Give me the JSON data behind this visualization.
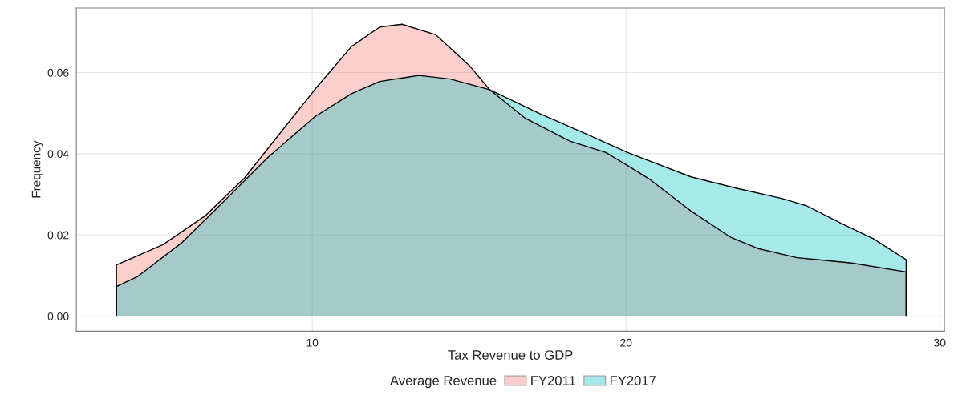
{
  "chart_data": {
    "type": "area",
    "xlabel": "Tax Revenue to GDP",
    "ylabel": "Frequency",
    "legend_title": "Average Revenue",
    "legend": "bottom",
    "grid": true,
    "xlim": [
      2.48,
      30.15
    ],
    "ylim": [
      -0.0037,
      0.0759
    ],
    "xticks": [
      10,
      20,
      30
    ],
    "yticks": [
      {
        "value": 0,
        "label": "0.00"
      },
      0.02,
      0.04,
      0.06
    ],
    "series": [
      {
        "name": "FY2011",
        "color": "#f8766d",
        "x": [
          3.76,
          5.24,
          6.57,
          7.85,
          9.1,
          10.08,
          11.25,
          12.15,
          12.86,
          13.94,
          15.01,
          15.65,
          16.78,
          18.21,
          19.36,
          20.05,
          20.72,
          22.07,
          23.32,
          24.19,
          25.45,
          27.19,
          28.93
        ],
        "values": [
          0.0126,
          0.0176,
          0.0246,
          0.0341,
          0.0463,
          0.0558,
          0.0664,
          0.0712,
          0.0719,
          0.0693,
          0.0617,
          0.0558,
          0.0488,
          0.0431,
          0.0403,
          0.0371,
          0.0339,
          0.0259,
          0.0195,
          0.0167,
          0.0144,
          0.0131,
          0.0109
        ]
      },
      {
        "name": "FY2017",
        "color": "#00bfc4",
        "x": [
          3.76,
          4.42,
          5.86,
          7.29,
          8.57,
          10.08,
          11.25,
          12.15,
          13.4,
          14.4,
          15.65,
          17.24,
          18.7,
          20.05,
          22.07,
          23.53,
          24.96,
          25.75,
          26.9,
          27.88,
          28.93
        ],
        "values": [
          0.0073,
          0.0097,
          0.0182,
          0.0291,
          0.039,
          0.0491,
          0.0548,
          0.0578,
          0.0593,
          0.0584,
          0.0558,
          0.0499,
          0.045,
          0.0403,
          0.0343,
          0.0315,
          0.029,
          0.0272,
          0.0227,
          0.0191,
          0.0139
        ]
      }
    ]
  }
}
